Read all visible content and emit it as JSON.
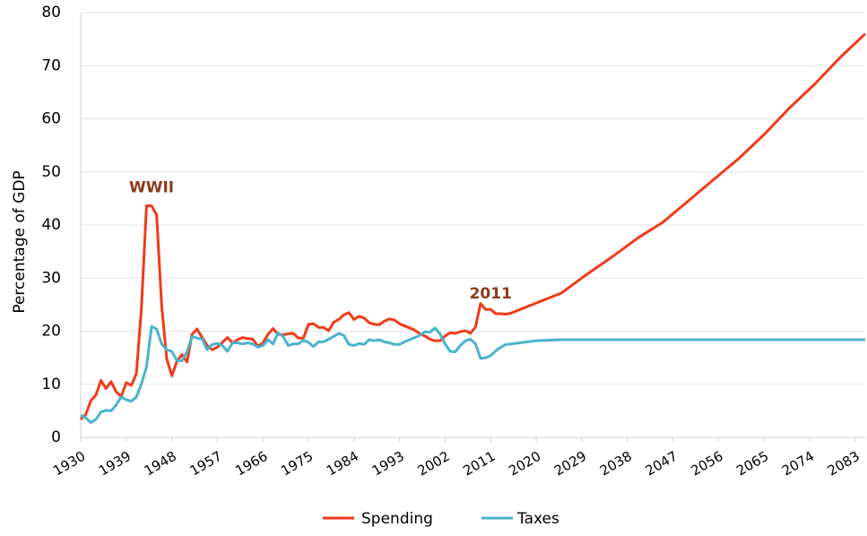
{
  "chart_data": {
    "type": "line",
    "y_label": "Percentage of GDP",
    "x": [
      1930,
      1931,
      1932,
      1933,
      1934,
      1935,
      1936,
      1937,
      1938,
      1939,
      1940,
      1941,
      1942,
      1943,
      1944,
      1945,
      1946,
      1947,
      1948,
      1949,
      1950,
      1951,
      1952,
      1953,
      1954,
      1955,
      1956,
      1957,
      1958,
      1959,
      1960,
      1961,
      1962,
      1963,
      1964,
      1965,
      1966,
      1967,
      1968,
      1969,
      1970,
      1971,
      1972,
      1973,
      1974,
      1975,
      1976,
      1977,
      1978,
      1979,
      1980,
      1981,
      1982,
      1983,
      1984,
      1985,
      1986,
      1987,
      1988,
      1989,
      1990,
      1991,
      1992,
      1993,
      1994,
      1995,
      1996,
      1997,
      1998,
      1999,
      2000,
      2001,
      2002,
      2003,
      2004,
      2005,
      2006,
      2007,
      2008,
      2009,
      2010,
      2011,
      2012,
      2013,
      2014,
      2015,
      2020,
      2025,
      2030,
      2035,
      2040,
      2045,
      2050,
      2055,
      2060,
      2065,
      2070,
      2075,
      2080,
      2085
    ],
    "series": [
      {
        "name": "Spending",
        "color": "#f03a1a",
        "values": [
          3.4,
          4.3,
          6.9,
          8.0,
          10.7,
          9.2,
          10.5,
          8.6,
          7.7,
          10.3,
          9.8,
          12.0,
          24.3,
          43.6,
          43.6,
          41.9,
          24.8,
          14.8,
          11.6,
          14.3,
          15.6,
          14.2,
          19.4,
          20.4,
          18.8,
          17.3,
          16.5,
          17.0,
          17.9,
          18.8,
          17.8,
          18.4,
          18.8,
          18.6,
          18.5,
          17.2,
          17.8,
          19.4,
          20.5,
          19.4,
          19.3,
          19.5,
          19.6,
          18.7,
          18.7,
          21.3,
          21.4,
          20.7,
          20.7,
          20.1,
          21.7,
          22.2,
          23.1,
          23.5,
          22.2,
          22.8,
          22.5,
          21.6,
          21.3,
          21.2,
          21.9,
          22.3,
          22.1,
          21.4,
          21.0,
          20.6,
          20.2,
          19.5,
          19.1,
          18.5,
          18.2,
          18.2,
          19.1,
          19.7,
          19.6,
          19.9,
          20.1,
          19.6,
          20.8,
          25.2,
          24.1,
          24.1,
          23.3,
          23.3,
          23.2,
          23.4,
          25.3,
          27.2,
          30.7,
          34.0,
          37.5,
          40.5,
          44.5,
          48.5,
          52.5,
          57.0,
          62.0,
          66.5,
          71.5,
          76.0
        ]
      },
      {
        "name": "Taxes",
        "color": "#4ab3cc",
        "values": [
          4.2,
          3.7,
          2.8,
          3.4,
          4.8,
          5.1,
          5.0,
          6.1,
          7.6,
          7.1,
          6.8,
          7.6,
          10.1,
          13.3,
          20.9,
          20.4,
          17.6,
          16.5,
          16.2,
          14.5,
          14.4,
          16.1,
          19.0,
          18.7,
          18.5,
          16.5,
          17.5,
          17.7,
          17.3,
          16.2,
          17.8,
          17.8,
          17.6,
          17.8,
          17.6,
          17.0,
          17.3,
          18.4,
          17.6,
          19.7,
          19.0,
          17.3,
          17.6,
          17.6,
          18.3,
          17.9,
          17.1,
          18.0,
          18.0,
          18.5,
          19.0,
          19.6,
          19.2,
          17.5,
          17.3,
          17.7,
          17.5,
          18.4,
          18.2,
          18.4,
          18.0,
          17.8,
          17.5,
          17.5,
          18.0,
          18.4,
          18.8,
          19.2,
          19.9,
          19.8,
          20.6,
          19.5,
          17.6,
          16.2,
          16.1,
          17.3,
          18.2,
          18.5,
          17.6,
          14.9,
          15.0,
          15.4,
          16.3,
          17.0,
          17.5,
          17.6,
          18.2,
          18.4,
          18.4,
          18.4,
          18.4,
          18.4,
          18.4,
          18.4,
          18.4,
          18.4,
          18.4,
          18.4,
          18.4,
          18.4
        ]
      }
    ],
    "xlim": [
      1930,
      2085
    ],
    "xticks": [
      1930,
      1939,
      1948,
      1957,
      1966,
      1975,
      1984,
      1993,
      2002,
      2011,
      2020,
      2029,
      2038,
      2047,
      2056,
      2065,
      2074,
      2083
    ],
    "ylim": [
      0,
      80
    ],
    "yticks": [
      0,
      10,
      20,
      30,
      40,
      50,
      60,
      70,
      80
    ],
    "grid": true,
    "annotations": [
      {
        "text": "WWII",
        "x": 1944,
        "y": 47
      },
      {
        "text": "2011",
        "x": 2011,
        "y": 27
      }
    ],
    "annotation_color": "#8b3a1a",
    "legend": "bottom"
  }
}
